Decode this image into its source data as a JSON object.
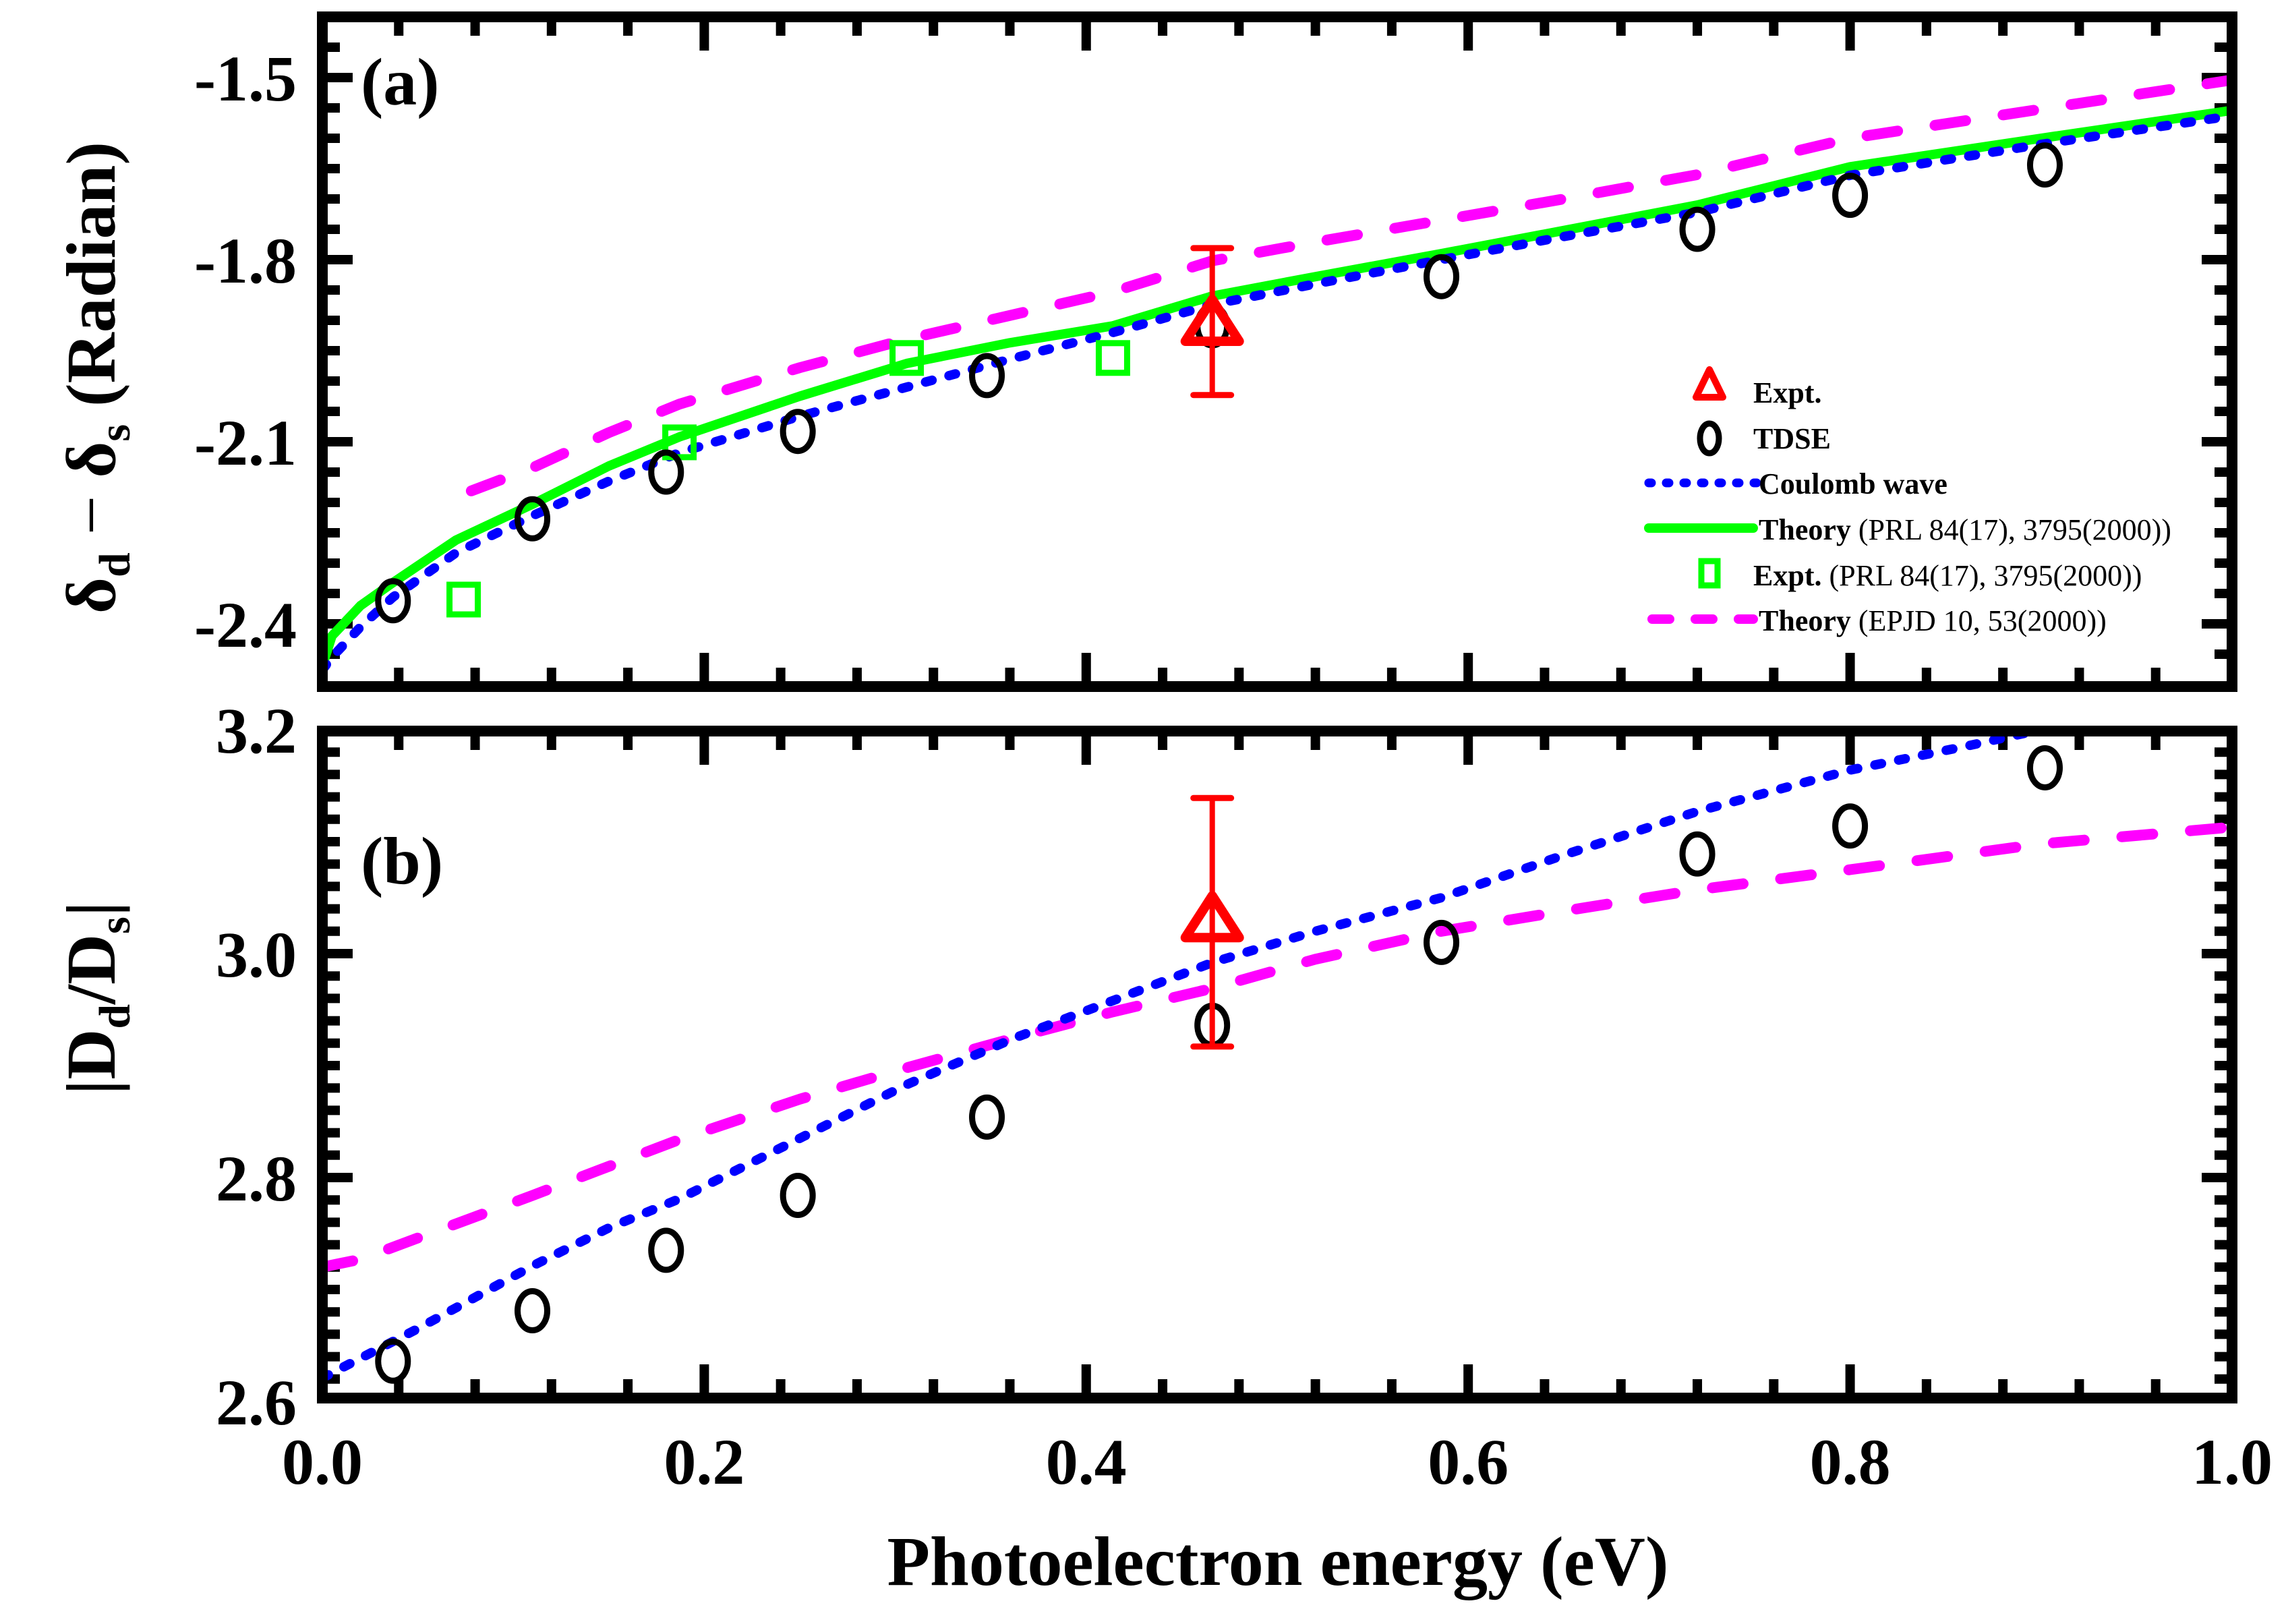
{
  "chart_data": [
    {
      "panel": "a",
      "type": "line",
      "panel_label": "(a)",
      "xlabel": "Photoelectron energy (eV)",
      "ylabel": {
        "main": "δ",
        "sub_d": "d",
        "minus": " − ",
        "main2": "δ",
        "sub_s": "s",
        "unit": " (Radian)"
      },
      "xlim": [
        0.0,
        1.0
      ],
      "ylim": [
        -2.47,
        -1.4
      ],
      "xticks": [
        "0.0",
        "0.2",
        "0.4",
        "0.6",
        "0.8",
        "1.0"
      ],
      "xtick_values": [
        0.0,
        0.2,
        0.4,
        0.6,
        0.8,
        1.0
      ],
      "yticks": [
        "-1.5",
        "-1.8",
        "-2.1",
        "-2.4"
      ],
      "ytick_values": [
        -1.5,
        -1.8,
        -2.1,
        -2.4
      ],
      "grid": false,
      "legend_position": "center-right",
      "series": [
        {
          "name": "Expt.",
          "kind": "marker-triangle",
          "color": "#ff0000",
          "points": [
            {
              "x": 0.466,
              "y": -1.9,
              "err_low": -2.023,
              "err_high": -1.781
            }
          ]
        },
        {
          "name": "TDSE",
          "kind": "marker-circle",
          "color": "#000000",
          "x": [
            0.037,
            0.11,
            0.18,
            0.249,
            0.348,
            0.466,
            0.586,
            0.72,
            0.8,
            0.902
          ],
          "y": [
            -2.362,
            -2.227,
            -2.15,
            -2.083,
            -1.991,
            -1.909,
            -1.828,
            -1.75,
            -1.694,
            -1.644
          ]
        },
        {
          "name": "Coulomb wave",
          "kind": "line-dotted",
          "color": "#0000ff",
          "x": [
            0.0,
            0.005,
            0.02,
            0.037,
            0.07,
            0.11,
            0.15,
            0.187,
            0.25,
            0.306,
            0.36,
            0.414,
            0.466,
            0.52,
            0.586,
            0.65,
            0.72,
            0.8,
            0.9,
            1.0
          ],
          "y": [
            -2.476,
            -2.455,
            -2.405,
            -2.356,
            -2.283,
            -2.222,
            -2.165,
            -2.118,
            -2.058,
            -2.01,
            -1.964,
            -1.92,
            -1.874,
            -1.84,
            -1.8,
            -1.762,
            -1.722,
            -1.661,
            -1.61,
            -1.563
          ]
        },
        {
          "name": "Theory (PRL 84(17), 3795(2000))",
          "legend_bold": "Theory",
          "legend_rest": " (PRL 84(17), 3795(2000))",
          "kind": "line-solid",
          "color": "#00ff00",
          "x": [
            0.0,
            0.005,
            0.02,
            0.037,
            0.07,
            0.11,
            0.15,
            0.187,
            0.25,
            0.306,
            0.36,
            0.414,
            0.466,
            0.52,
            0.586,
            0.65,
            0.72,
            0.8,
            0.9,
            1.0
          ],
          "y": [
            -2.47,
            -2.42,
            -2.37,
            -2.332,
            -2.262,
            -2.203,
            -2.14,
            -2.092,
            -2.025,
            -1.971,
            -1.937,
            -1.909,
            -1.86,
            -1.828,
            -1.79,
            -1.752,
            -1.71,
            -1.647,
            -1.6,
            -1.554
          ]
        },
        {
          "name": "Expt. (PRL 84(17), 3795(2000))",
          "legend_bold": "Expt.",
          "legend_rest": " (PRL 84(17), 3795(2000))",
          "kind": "marker-square",
          "color": "#00ff00",
          "x": [
            0.074,
            0.187,
            0.306,
            0.414
          ],
          "y": [
            -2.36,
            -2.101,
            -1.962,
            -1.962
          ]
        },
        {
          "name": "Theory (EPJD 10, 53(2000))",
          "legend_bold": "Theory",
          "legend_rest": " (EPJD 10, 53(2000))",
          "kind": "line-dashed",
          "color": "#ff00ff",
          "x": [
            0.078,
            0.11,
            0.15,
            0.187,
            0.25,
            0.306,
            0.36,
            0.414,
            0.466,
            0.52,
            0.586,
            0.65,
            0.72,
            0.8,
            0.9,
            1.0
          ],
          "y": [
            -2.181,
            -2.143,
            -2.085,
            -2.038,
            -1.978,
            -1.931,
            -1.892,
            -1.853,
            -1.802,
            -1.771,
            -1.735,
            -1.7,
            -1.66,
            -1.6,
            -1.552,
            -1.504
          ]
        }
      ]
    },
    {
      "panel": "b",
      "type": "line",
      "panel_label": "(b)",
      "xlabel": "Photoelectron energy (eV)",
      "ylabel": {
        "bar1": "|",
        "main": "D",
        "sub_d": "d",
        "slash": "/",
        "main2": "D",
        "sub_s": "s",
        "bar2": "|"
      },
      "xlim": [
        0.0,
        1.0
      ],
      "ylim": [
        2.6,
        3.2
      ],
      "xticks": [
        "0.0",
        "0.2",
        "0.4",
        "0.6",
        "0.8",
        "1.0"
      ],
      "xtick_values": [
        0.0,
        0.2,
        0.4,
        0.6,
        0.8,
        1.0
      ],
      "yticks": [
        "2.6",
        "2.8",
        "3.0",
        "3.2"
      ],
      "ytick_values": [
        2.6,
        2.8,
        3.0,
        3.2
      ],
      "grid": false,
      "series": [
        {
          "name": "Expt.",
          "kind": "marker-triangle",
          "color": "#ff0000",
          "points": [
            {
              "x": 0.466,
              "y": 3.033,
              "err_low": 2.917,
              "err_high": 3.139
            }
          ]
        },
        {
          "name": "TDSE",
          "kind": "marker-circle",
          "color": "#000000",
          "x": [
            0.037,
            0.11,
            0.18,
            0.249,
            0.348,
            0.466,
            0.586,
            0.72,
            0.8,
            0.902
          ],
          "y": [
            2.636,
            2.681,
            2.735,
            2.784,
            2.854,
            2.936,
            3.01,
            3.089,
            3.114,
            3.166
          ]
        },
        {
          "name": "Coulomb wave",
          "kind": "line-dotted",
          "color": "#0000ff",
          "x": [
            0.0,
            0.05,
            0.11,
            0.15,
            0.187,
            0.25,
            0.306,
            0.363,
            0.414,
            0.466,
            0.52,
            0.586,
            0.65,
            0.72,
            0.8,
            0.86,
            0.9
          ],
          "y": [
            2.621,
            2.665,
            2.721,
            2.755,
            2.781,
            2.835,
            2.883,
            2.925,
            2.958,
            2.992,
            3.02,
            3.05,
            3.088,
            3.127,
            3.164,
            3.185,
            3.2
          ]
        },
        {
          "name": "Theory (EPJD 10, 53(2000))",
          "kind": "line-dashed",
          "color": "#ff00ff",
          "x": [
            0.0,
            0.02,
            0.11,
            0.187,
            0.25,
            0.306,
            0.363,
            0.414,
            0.466,
            0.52,
            0.586,
            0.65,
            0.72,
            0.8,
            0.9,
            1.0
          ],
          "y": [
            2.72,
            2.727,
            2.784,
            2.834,
            2.87,
            2.898,
            2.925,
            2.948,
            2.969,
            2.995,
            3.02,
            3.038,
            3.057,
            3.075,
            3.098,
            3.113
          ]
        }
      ]
    }
  ]
}
